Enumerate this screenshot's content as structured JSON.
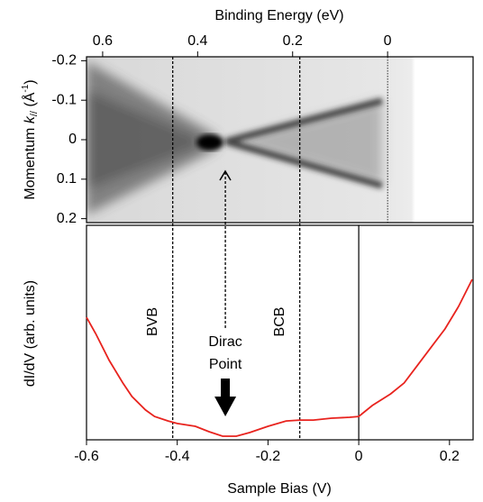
{
  "chart_data": [
    {
      "type": "heatmap",
      "xlabel": "Binding Energy (eV)",
      "xlim": [
        0.634,
        -0.18
      ],
      "xticks": [
        0.6,
        0.4,
        0.2,
        0
      ],
      "ylabel_parts": [
        "Momentum ",
        "k",
        "//",
        " (Å",
        "-1",
        ")"
      ],
      "ylim": [
        -0.21,
        0.21
      ],
      "yticks": [
        -0.2,
        -0.1,
        0,
        0.1,
        0.2
      ],
      "fermi_line": 0
    },
    {
      "type": "line",
      "xlabel": "Sample Bias (V)",
      "ylabel": "dI/dV (arb. units)",
      "xlim": [
        -0.6,
        0.252
      ],
      "xticks": [
        -0.6,
        -0.4,
        -0.2,
        0,
        0.2
      ],
      "ylim": [
        0,
        1
      ],
      "x": [
        -0.6,
        -0.58,
        -0.55,
        -0.52,
        -0.5,
        -0.47,
        -0.45,
        -0.42,
        -0.4,
        -0.36,
        -0.33,
        -0.3,
        -0.27,
        -0.24,
        -0.2,
        -0.16,
        -0.13,
        -0.1,
        -0.06,
        -0.02,
        0,
        0.03,
        0.07,
        0.1,
        0.13,
        0.16,
        0.19,
        0.22,
        0.25
      ],
      "series": [
        {
          "color": "#e8231e",
          "values": [
            0.571,
            0.496,
            0.37,
            0.265,
            0.202,
            0.139,
            0.109,
            0.088,
            0.076,
            0.063,
            0.038,
            0.017,
            0.017,
            0.034,
            0.063,
            0.088,
            0.092,
            0.092,
            0.101,
            0.105,
            0.109,
            0.16,
            0.214,
            0.265,
            0.349,
            0.433,
            0.517,
            0.622,
            0.748
          ]
        }
      ],
      "annotations": [
        {
          "text": "BVB",
          "x": -0.41
        },
        {
          "text": "BCB",
          "x": -0.13
        }
      ],
      "dirac": {
        "text": [
          "Dirac",
          "Point"
        ],
        "x": -0.294
      },
      "zero_line": 0
    }
  ]
}
